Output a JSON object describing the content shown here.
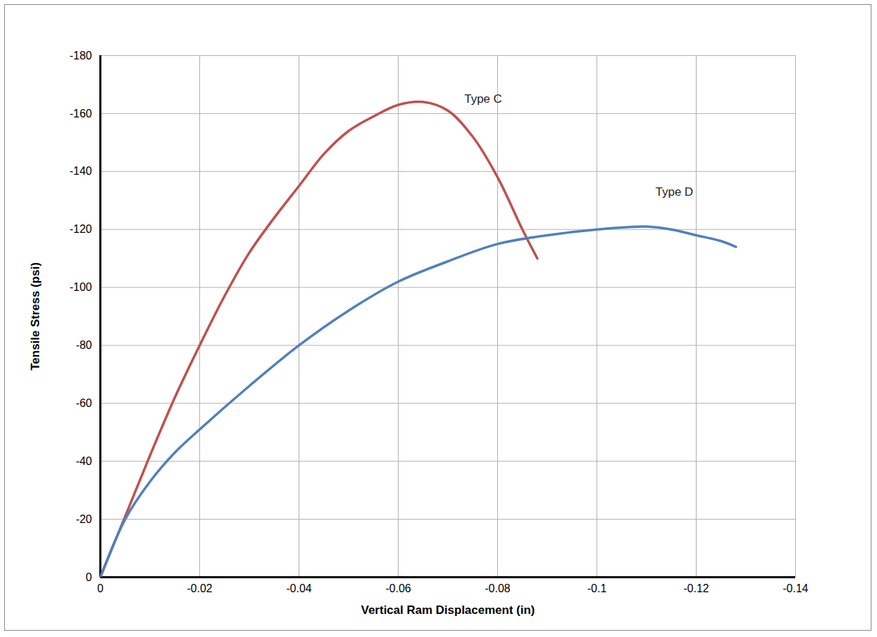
{
  "chart_data": {
    "type": "line",
    "x_label": "Vertical Ram Displacement (in)",
    "y_label": "Tensile Stress (psi)",
    "xlim": [
      0,
      -0.14
    ],
    "ylim": [
      0,
      -180
    ],
    "xticks": [
      0,
      -0.02,
      -0.04,
      -0.06,
      -0.08,
      -0.1,
      -0.12,
      -0.14
    ],
    "yticks": [
      0,
      -20,
      -40,
      -60,
      -80,
      -100,
      -120,
      -140,
      -160,
      -180
    ],
    "grid": true,
    "series": [
      {
        "name": "Type C",
        "color": "#c0504d",
        "label_position": [
          -0.0733,
          -165
        ],
        "x": [
          0,
          -0.005,
          -0.01,
          -0.015,
          -0.02,
          -0.025,
          -0.03,
          -0.035,
          -0.04,
          -0.045,
          -0.05,
          -0.055,
          -0.06,
          -0.065,
          -0.07,
          -0.075,
          -0.08,
          -0.085,
          -0.088
        ],
        "values": [
          0,
          -21,
          -42,
          -62,
          -80,
          -97,
          -112,
          -124,
          -135,
          -146,
          -154,
          -159,
          -163,
          -164,
          -161,
          -152,
          -138,
          -120,
          -110
        ]
      },
      {
        "name": "Type D",
        "color": "#4f81bd",
        "label_position": [
          -0.1118,
          -133
        ],
        "x": [
          0,
          -0.005,
          -0.01,
          -0.015,
          -0.02,
          -0.03,
          -0.04,
          -0.05,
          -0.06,
          -0.07,
          -0.08,
          -0.09,
          -0.1,
          -0.11,
          -0.115,
          -0.12,
          -0.125,
          -0.128
        ],
        "values": [
          0,
          -20,
          -33,
          -43,
          -51,
          -66,
          -80,
          -92,
          -102,
          -109,
          -115,
          -118,
          -120,
          -121,
          -120,
          -118,
          -116,
          -114
        ]
      }
    ]
  }
}
